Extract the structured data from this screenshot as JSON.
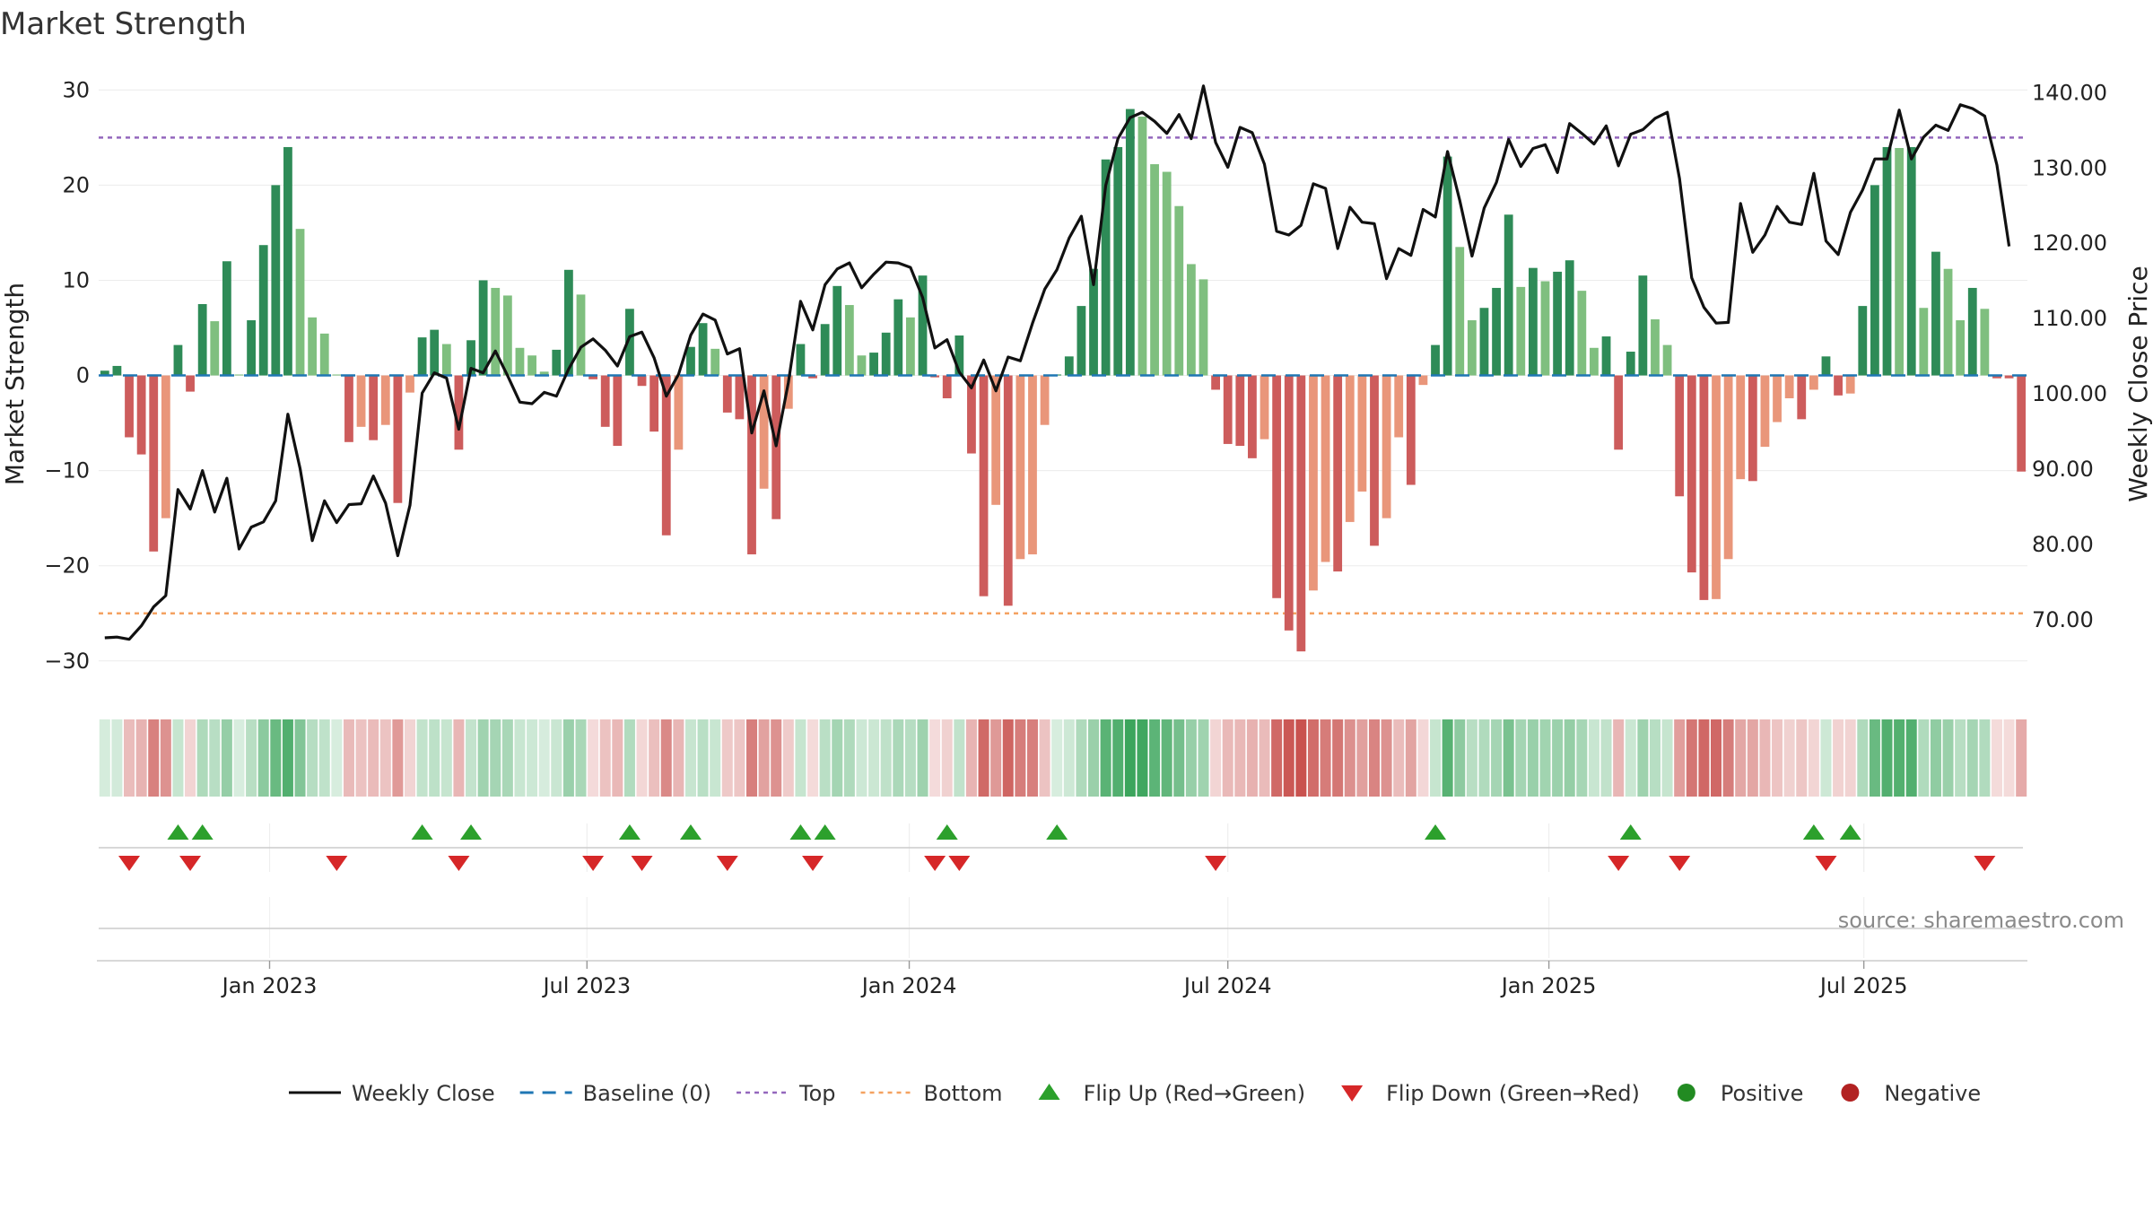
{
  "chart_data": {
    "type": "bar",
    "title": "Market Strength",
    "ylabel": "Market Strength",
    "y2label": "Weekly Close Price",
    "ylim": [
      -32,
      30.5
    ],
    "y2lim": [
      62,
      141
    ],
    "y_ticks": [
      30,
      20,
      10,
      0,
      -10,
      -20,
      -30
    ],
    "y_tick_labels": [
      "30",
      "20",
      "10",
      "0",
      "−10",
      "−20",
      "−30"
    ],
    "y2_ticks": [
      140,
      130,
      120,
      110,
      100,
      90,
      80,
      70
    ],
    "y2_tick_labels": [
      "140.00",
      "130.00",
      "120.00",
      "110.00",
      "100.00",
      "90.00",
      "80.00",
      "70.00"
    ],
    "x_ticks": [
      {
        "label": "Jan 2023",
        "week": 14
      },
      {
        "label": "Jul 2023",
        "week": 40
      },
      {
        "label": "Jan 2024",
        "week": 66.4
      },
      {
        "label": "Jul 2024",
        "week": 92.5
      },
      {
        "label": "Jan 2025",
        "week": 118.8
      },
      {
        "label": "Jul 2025",
        "week": 144.6
      }
    ],
    "top_line": 25,
    "bottom_line": -25,
    "strength_values": [
      0.5,
      1,
      -6.5,
      -8.3,
      -18.5,
      -15,
      3.2,
      -1.7,
      7.5,
      5.7,
      12,
      0.1,
      5.8,
      13.7,
      20,
      24,
      15.4,
      6.1,
      4.4,
      0.1,
      -7,
      -5.4,
      -6.8,
      -5.2,
      -13.4,
      -1.8,
      4,
      4.8,
      3.3,
      -7.8,
      3.7,
      10,
      9.2,
      8.4,
      2.9,
      2.1,
      0.4,
      2.7,
      11.1,
      8.5,
      -0.4,
      -5.4,
      -7.4,
      7,
      -1.1,
      -5.9,
      -16.8,
      -7.8,
      3,
      5.5,
      2.8,
      -3.9,
      -4.6,
      -18.8,
      -11.9,
      -15.1,
      -3.5,
      3.3,
      -0.3,
      5.4,
      9.4,
      7.4,
      2.1,
      2.4,
      4.5,
      8,
      6.1,
      10.5,
      -0.2,
      -2.4,
      4.2,
      -8.2,
      -23.2,
      -13.6,
      -24.2,
      -19.3,
      -18.8,
      -5.2,
      0.1,
      2,
      7.3,
      11.2,
      22.7,
      24,
      28,
      27.2,
      22.2,
      21.4,
      17.8,
      11.7,
      10.1,
      -1.5,
      -7.2,
      -7.4,
      -8.7,
      -6.7,
      -23.4,
      -26.8,
      -29,
      -22.6,
      -19.6,
      -20.6,
      -15.4,
      -12.2,
      -17.9,
      -15,
      -6.5,
      -11.5,
      -1,
      3.2,
      23,
      13.5,
      5.8,
      7.1,
      9.2,
      16.9,
      9.3,
      11.3,
      9.9,
      10.9,
      12.1,
      8.9,
      2.9,
      4.1,
      -7.8,
      2.5,
      10.5,
      5.9,
      3.2,
      -12.7,
      -20.7,
      -23.6,
      -23.5,
      -19.3,
      -10.9,
      -11.1,
      -7.5,
      -4.9,
      -2.4,
      -4.6,
      -1.5,
      2,
      -2.1,
      -1.9,
      7.3,
      20,
      24,
      23.9,
      24,
      7.1,
      13,
      11.2,
      5.8,
      9.2,
      7,
      -0.3,
      -0.3,
      -10.1
    ],
    "weekly_close": [
      67.6,
      67.7,
      67.4,
      69.2,
      71.7,
      73.2,
      87.3,
      84.7,
      89.8,
      84.3,
      88.8,
      79.4,
      82.3,
      83,
      85.8,
      97.3,
      90.1,
      80.5,
      85.8,
      82.9,
      85.3,
      85.4,
      89.1,
      85.5,
      78.5,
      85.2,
      100.1,
      102.8,
      102.1,
      95.3,
      103.4,
      102.8,
      105.7,
      102.4,
      98.9,
      98.7,
      100.2,
      99.7,
      103.3,
      106.2,
      107.3,
      105.8,
      103.7,
      107.6,
      108.2,
      104.8,
      99.7,
      102.6,
      107.8,
      110.6,
      109.8,
      105.3,
      106,
      94.8,
      100.4,
      93.1,
      101.5,
      112.3,
      108.5,
      114.5,
      116.6,
      117.4,
      114.1,
      115.9,
      117.5,
      117.4,
      116.8,
      112.8,
      106.1,
      107.2,
      102.9,
      100.8,
      104.5,
      100.4,
      104.9,
      104.4,
      109.4,
      113.9,
      116.5,
      120.7,
      123.6,
      114.5,
      127.7,
      133.9,
      136.7,
      137.4,
      136.2,
      134.6,
      137.1,
      133.9,
      140.9,
      133.4,
      130.1,
      135.4,
      134.7,
      130.5,
      121.6,
      121.1,
      122.4,
      127.9,
      127.3,
      119.3,
      124.8,
      122.8,
      122.6,
      115.3,
      119.3,
      118.4,
      124.5,
      123.5,
      132.2,
      125.7,
      118.3,
      124.7,
      128.1,
      133.8,
      130.2,
      132.6,
      133.1,
      129.4,
      135.9,
      134.6,
      133.2,
      135.6,
      130.3,
      134.5,
      135.1,
      136.6,
      137.4,
      128.6,
      115.4,
      111.5,
      109.4,
      109.5,
      125.3,
      118.8,
      121.1,
      124.9,
      122.8,
      122.5,
      129.3,
      120.3,
      118.5,
      124.1,
      127.1,
      131.2,
      131.2,
      137.7,
      131.2,
      134.1,
      135.7,
      135,
      138.4,
      137.9,
      136.9,
      130.4,
      119.6
    ],
    "regime_colors": {
      "strong_green": "#2e8b57",
      "light_green": "#7fbf7f",
      "strong_red": "#cd5c5c",
      "light_red": "#e9967a",
      "baseline": "#1f77b4",
      "top": "#9467bd",
      "bottom": "#f4a261",
      "price": "#111111",
      "flip_up": "#2ca02c",
      "flip_down": "#d62728",
      "positive": "#228b22",
      "negative": "#b22222"
    },
    "flip_up_weeks": [
      6,
      8,
      26,
      30,
      43,
      48,
      57,
      59,
      69,
      78,
      109,
      125,
      140,
      143
    ],
    "flip_down_weeks": [
      2,
      7,
      19,
      29,
      40,
      44,
      51,
      58,
      68,
      70,
      91,
      124,
      129,
      141,
      154
    ],
    "legend": [
      {
        "label": "Weekly Close",
        "kind": "line"
      },
      {
        "label": "Baseline (0)",
        "kind": "dashed"
      },
      {
        "label": "Top",
        "kind": "dotted-top"
      },
      {
        "label": "Bottom",
        "kind": "dotted-bottom"
      },
      {
        "label": "Flip Up (Red→Green)",
        "kind": "tri-up"
      },
      {
        "label": "Flip Down (Green→Red)",
        "kind": "tri-down"
      },
      {
        "label": "Positive",
        "kind": "dot-pos"
      },
      {
        "label": "Negative",
        "kind": "dot-neg"
      }
    ],
    "source_text": "source: sharemaestro.com",
    "legend_position": "bottom-center"
  }
}
